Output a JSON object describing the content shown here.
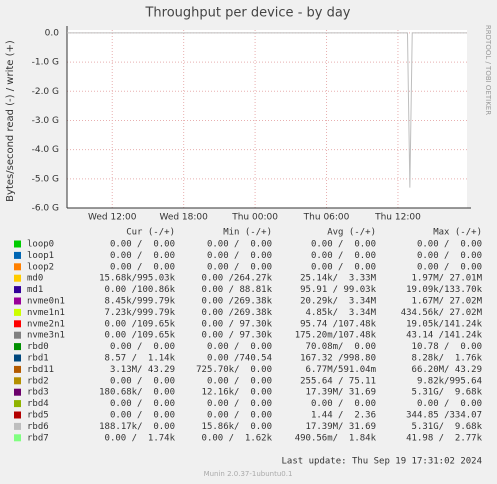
{
  "chart_data": {
    "type": "line",
    "title": "Throughput per device - by day",
    "y_label": "Bytes/second read (-) / write (+)",
    "side_label": "RRDTOOL / TOBI OETIKER",
    "xlim": [
      8.2,
      41.8
    ],
    "xticks": [
      {
        "value": 12,
        "label": "Wed 12:00"
      },
      {
        "value": 18,
        "label": "Wed 18:00"
      },
      {
        "value": 24,
        "label": "Thu 00:00"
      },
      {
        "value": 30,
        "label": "Thu 06:00"
      },
      {
        "value": 36,
        "label": "Thu 12:00"
      }
    ],
    "ylim": [
      -6,
      0.1
    ],
    "yticks": [
      {
        "value": 0,
        "label": "0.0"
      },
      {
        "value": -1,
        "label": "-1.0 G"
      },
      {
        "value": -2,
        "label": "-2.0 G"
      },
      {
        "value": -3,
        "label": "-3.0 G"
      },
      {
        "value": -4,
        "label": "-4.0 G"
      },
      {
        "value": -5,
        "label": "-5.0 G"
      },
      {
        "value": -6,
        "label": "-6.0 G"
      }
    ],
    "grid": true,
    "series": [
      {
        "color": "#bebebe",
        "x": [
          8.2,
          36.8,
          37.0,
          37.2,
          41.8
        ],
        "values": [
          0,
          0,
          -5.3,
          0,
          0
        ]
      }
    ]
  },
  "table": {
    "headers": [
      "Cur (-/+)",
      "Min (-/+)",
      "Avg (-/+)",
      "Max (-/+)"
    ],
    "rows": [
      {
        "name": "loop0",
        "color": "#00cc00",
        "cur": "0.00 /  0.00",
        "min": "0.00 /  0.00",
        "avg": "0.00 /  0.00",
        "max": "0.00 /  0.00"
      },
      {
        "name": "loop1",
        "color": "#0066b3",
        "cur": "0.00 /  0.00",
        "min": "0.00 /  0.00",
        "avg": "0.00 /  0.00",
        "max": "0.00 /  0.00"
      },
      {
        "name": "loop2",
        "color": "#ff8000",
        "cur": "0.00 /  0.00",
        "min": "0.00 /  0.00",
        "avg": "0.00 /  0.00",
        "max": "0.00 /  0.00"
      },
      {
        "name": "md0",
        "color": "#ffcc00",
        "cur": "15.68k/995.03k",
        "min": "0.00 /264.27k",
        "avg": "25.14k/  3.33M",
        "max": "1.97M/ 27.01M"
      },
      {
        "name": "md1",
        "color": "#330099",
        "cur": "0.00 /100.86k",
        "min": "0.00 / 88.81k",
        "avg": "95.91 / 99.03k",
        "max": "19.09k/133.70k"
      },
      {
        "name": "nvme0n1",
        "color": "#990099",
        "cur": "8.45k/999.79k",
        "min": "0.00 /269.38k",
        "avg": "20.29k/  3.34M",
        "max": "1.67M/ 27.02M"
      },
      {
        "name": "nvme1n1",
        "color": "#ccff00",
        "cur": "7.23k/999.79k",
        "min": "0.00 /269.38k",
        "avg": "4.85k/  3.34M",
        "max": "434.56k/ 27.02M"
      },
      {
        "name": "nvme2n1",
        "color": "#ff0000",
        "cur": "0.00 /109.65k",
        "min": "0.00 / 97.30k",
        "avg": "95.74 /107.48k",
        "max": "19.05k/141.24k"
      },
      {
        "name": "nvme3n1",
        "color": "#808080",
        "cur": "0.00 /109.65k",
        "min": "0.00 / 97.30k",
        "avg": "175.20m/107.48k",
        "max": "43.14 /141.24k"
      },
      {
        "name": "rbd0",
        "color": "#008f00",
        "cur": "0.00 /  0.00",
        "min": "0.00 /  0.00",
        "avg": "70.08m/  0.00",
        "max": "10.78 /  0.00"
      },
      {
        "name": "rbd1",
        "color": "#00487d",
        "cur": "8.57 /  1.14k",
        "min": "0.00 /740.54",
        "avg": "167.32 /998.80",
        "max": "8.28k/  1.76k"
      },
      {
        "name": "rbd11",
        "color": "#b35a00",
        "cur": "3.13M/ 43.29",
        "min": "725.70k/  0.00",
        "avg": "6.77M/591.04m",
        "max": "66.20M/ 43.29"
      },
      {
        "name": "rbd2",
        "color": "#b38f00",
        "cur": "0.00 /  0.00",
        "min": "0.00 /  0.00",
        "avg": "255.64 / 75.11",
        "max": "9.82k/995.64"
      },
      {
        "name": "rbd3",
        "color": "#6b006b",
        "cur": "180.68k/  0.00",
        "min": "12.16k/  0.00",
        "avg": "17.39M/ 31.69",
        "max": "5.31G/  9.68k"
      },
      {
        "name": "rbd4",
        "color": "#8fb300",
        "cur": "0.00 /  0.00",
        "min": "0.00 /  0.00",
        "avg": "0.00 /  0.00",
        "max": "0.00 /  0.00"
      },
      {
        "name": "rbd5",
        "color": "#b30000",
        "cur": "0.00 /  0.00",
        "min": "0.00 /  0.00",
        "avg": "1.44 /  2.36",
        "max": "344.85 /334.07"
      },
      {
        "name": "rbd6",
        "color": "#bebebe",
        "cur": "188.17k/  0.00",
        "min": "15.86k/  0.00",
        "avg": "17.39M/ 31.69",
        "max": "5.31G/  9.68k"
      },
      {
        "name": "rbd7",
        "color": "#80ff80",
        "cur": "0.00 /  1.74k",
        "min": "0.00 /  1.62k",
        "avg": "490.56m/  1.84k",
        "max": "41.98 /  2.77k"
      }
    ]
  },
  "footer": {
    "last_update": "Last update: Thu Sep 19 17:31:02 2024",
    "version": "Munin 2.0.37-1ubuntu0.1"
  }
}
